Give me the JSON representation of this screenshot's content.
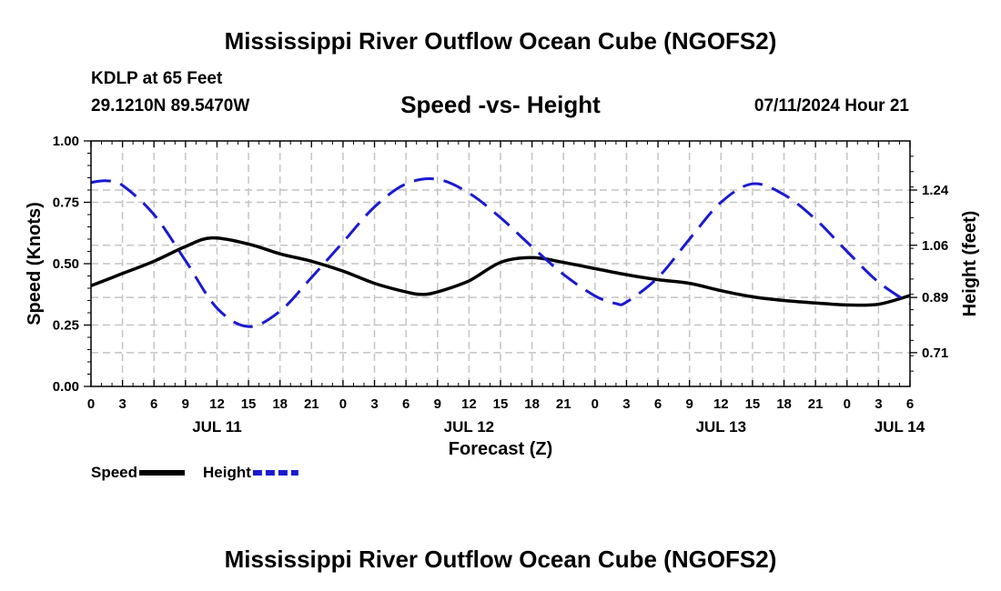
{
  "header": {
    "title": "Mississippi River Outflow Ocean Cube (NGOFS2)",
    "station": "KDLP at 65 Feet",
    "coords": "29.1210N  89.5470W",
    "date": "07/11/2024 Hour 21"
  },
  "footer": {
    "title": "Mississippi River Outflow Ocean Cube (NGOFS2)"
  },
  "chart_data": {
    "type": "line",
    "title": "Speed -vs- Height",
    "xlabel": "Forecast (Z)",
    "ylabel": "Speed (Knots)",
    "y2label": "Height (feet)",
    "x_range": [
      0,
      78
    ],
    "ylim": [
      0,
      1
    ],
    "y2lim": [
      0.6,
      1.4
    ],
    "grid": true,
    "x_ticks": [
      {
        "x": 0,
        "label": "0"
      },
      {
        "x": 3,
        "label": "3"
      },
      {
        "x": 6,
        "label": "6"
      },
      {
        "x": 9,
        "label": "9"
      },
      {
        "x": 12,
        "label": "12"
      },
      {
        "x": 15,
        "label": "15"
      },
      {
        "x": 18,
        "label": "18"
      },
      {
        "x": 21,
        "label": "21"
      },
      {
        "x": 24,
        "label": "0"
      },
      {
        "x": 27,
        "label": "3"
      },
      {
        "x": 30,
        "label": "6"
      },
      {
        "x": 33,
        "label": "9"
      },
      {
        "x": 36,
        "label": "12"
      },
      {
        "x": 39,
        "label": "15"
      },
      {
        "x": 42,
        "label": "18"
      },
      {
        "x": 45,
        "label": "21"
      },
      {
        "x": 48,
        "label": "0"
      },
      {
        "x": 51,
        "label": "3"
      },
      {
        "x": 54,
        "label": "6"
      },
      {
        "x": 57,
        "label": "9"
      },
      {
        "x": 60,
        "label": "12"
      },
      {
        "x": 63,
        "label": "15"
      },
      {
        "x": 66,
        "label": "18"
      },
      {
        "x": 69,
        "label": "21"
      },
      {
        "x": 72,
        "label": "0"
      },
      {
        "x": 75,
        "label": "3"
      },
      {
        "x": 78,
        "label": "6"
      }
    ],
    "day_labels": [
      {
        "x": 12,
        "label": "JUL 11"
      },
      {
        "x": 36,
        "label": "JUL 12"
      },
      {
        "x": 60,
        "label": "JUL 13"
      },
      {
        "x": 77,
        "label": "JUL 14"
      }
    ],
    "y_ticks": [
      0.0,
      0.25,
      0.5,
      0.75,
      1.0
    ],
    "y_tick_labels": [
      "0.00",
      "0.25",
      "0.50",
      "0.75",
      "1.00"
    ],
    "y2_ticks": [
      0.71,
      0.89,
      1.06,
      1.24
    ],
    "y2_tick_labels": [
      "0.71",
      "0.89",
      "1.06",
      "1.24"
    ],
    "series": [
      {
        "name": "Speed",
        "axis": "left",
        "color": "#000000",
        "dash": false,
        "x": [
          0,
          3,
          6,
          9,
          11.5,
          15,
          18,
          21,
          24,
          27,
          30,
          31.5,
          33,
          36,
          39,
          42,
          45,
          48,
          51,
          54,
          57,
          60,
          63,
          66,
          69,
          72,
          75,
          78
        ],
        "values": [
          0.41,
          0.46,
          0.51,
          0.57,
          0.605,
          0.58,
          0.54,
          0.51,
          0.47,
          0.42,
          0.385,
          0.375,
          0.385,
          0.43,
          0.505,
          0.525,
          0.505,
          0.48,
          0.455,
          0.435,
          0.42,
          0.39,
          0.365,
          0.35,
          0.34,
          0.332,
          0.335,
          0.37
        ]
      },
      {
        "name": "Height",
        "axis": "right",
        "color": "#1a1ad0",
        "dash": true,
        "x": [
          0,
          1.5,
          3,
          6,
          9,
          12,
          15,
          18,
          21,
          24,
          27,
          30,
          33,
          36,
          39,
          42,
          45,
          48,
          50,
          51,
          54,
          57,
          60,
          63,
          66,
          69,
          72,
          75,
          78
        ],
        "values": [
          1.265,
          1.27,
          1.255,
          1.16,
          1.01,
          0.855,
          0.795,
          0.845,
          0.955,
          1.07,
          1.185,
          1.26,
          1.275,
          1.23,
          1.15,
          1.055,
          0.965,
          0.895,
          0.87,
          0.875,
          0.955,
          1.08,
          1.2,
          1.26,
          1.225,
          1.145,
          1.04,
          0.94,
          0.87
        ]
      }
    ],
    "legend": {
      "position": "bottom-left",
      "entries": [
        {
          "label": "Speed",
          "color": "#000000",
          "dash": false
        },
        {
          "label": "Height",
          "color": "#1a1ad0",
          "dash": true
        }
      ]
    }
  }
}
